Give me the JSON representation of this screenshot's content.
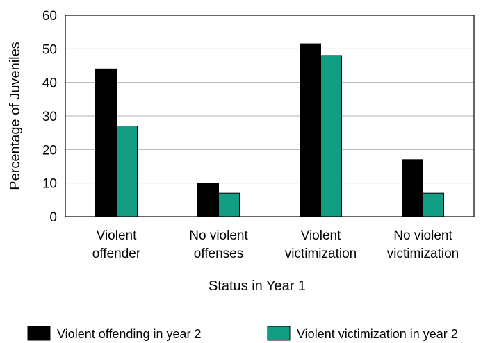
{
  "chart_data": {
    "type": "bar",
    "title": "",
    "ylabel": "Percentage of Juveniles",
    "xlabel": "Status in Year 1",
    "ylim": [
      0,
      60
    ],
    "yticks": [
      0,
      10,
      20,
      30,
      40,
      50,
      60
    ],
    "grid": true,
    "legend_position": "bottom",
    "categories": [
      [
        "Violent",
        "offender"
      ],
      [
        "No violent",
        "offenses"
      ],
      [
        "Violent",
        "victimization"
      ],
      [
        "No violent",
        "victimization"
      ]
    ],
    "series": [
      {
        "name": "Violent offending in year 2",
        "color": "#000000",
        "values": [
          44,
          10,
          51.5,
          17
        ]
      },
      {
        "name": "Violent victimization in year 2",
        "color": "#129e83",
        "values": [
          27,
          7,
          48,
          7
        ]
      }
    ]
  }
}
